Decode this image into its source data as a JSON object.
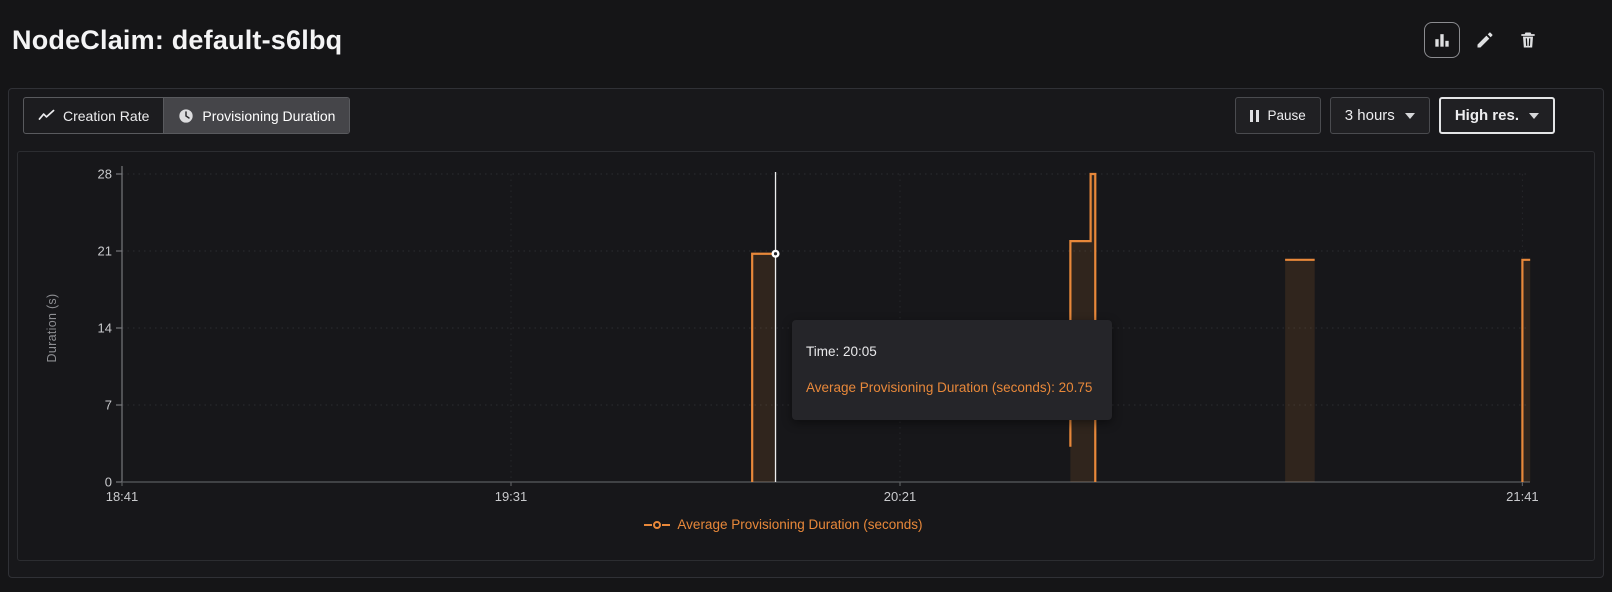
{
  "header": {
    "title": "NodeClaim: default-s6lbq",
    "icons": [
      "bar-chart-icon",
      "pencil-icon",
      "trash-icon"
    ]
  },
  "toolbar": {
    "tabs": [
      {
        "label": "Creation Rate",
        "icon": "trend-line-icon",
        "selected": false
      },
      {
        "label": "Provisioning Duration",
        "icon": "clock-icon",
        "selected": true
      }
    ],
    "pause_label": "Pause",
    "time_range": "3 hours",
    "resolution": "High res."
  },
  "tooltip": {
    "time_label": "Time: 20:05",
    "value_label": "Average Provisioning Duration (seconds): 20.75"
  },
  "colors": {
    "accent_orange": "#e8883a",
    "background": "#151517",
    "panel": "#18181b",
    "crosshair": "#eceded"
  },
  "chart_data": {
    "type": "line",
    "title": "",
    "xlabel": "",
    "ylabel": "Duration (s)",
    "ylim": [
      0,
      28
    ],
    "yticks": [
      0,
      7,
      14,
      21,
      28
    ],
    "x_unit": "minutes after 18:41",
    "xticks": [
      {
        "label": "18:41",
        "t": 0
      },
      {
        "label": "19:31",
        "t": 50
      },
      {
        "label": "20:21",
        "t": 100
      },
      {
        "label": "21:41",
        "t": 180
      }
    ],
    "grid": "dotted",
    "series": [
      {
        "name": "Average Provisioning Duration (seconds)",
        "color": "#e8883a",
        "fill": "rgba(232,136,58,0.12)",
        "segments": [
          [
            [
              81,
              0
            ],
            [
              81,
              20.75
            ],
            [
              84,
              20.75
            ]
          ],
          [
            [
              121.9,
              3.2
            ],
            [
              121.9,
              21.9
            ],
            [
              124.5,
              21.9
            ],
            [
              124.5,
              28
            ],
            [
              125.1,
              28
            ],
            [
              125.1,
              0
            ]
          ],
          [
            [
              149.5,
              20.2
            ],
            [
              153.3,
              20.2
            ]
          ],
          [
            [
              180,
              0
            ],
            [
              180,
              20.2
            ],
            [
              181,
              20.2
            ]
          ]
        ]
      }
    ],
    "crosshair": {
      "t": 84,
      "value": 20.75,
      "time_label": "20:05"
    },
    "legend": {
      "label": "Average Provisioning Duration (seconds)",
      "position": "bottom-center"
    }
  }
}
